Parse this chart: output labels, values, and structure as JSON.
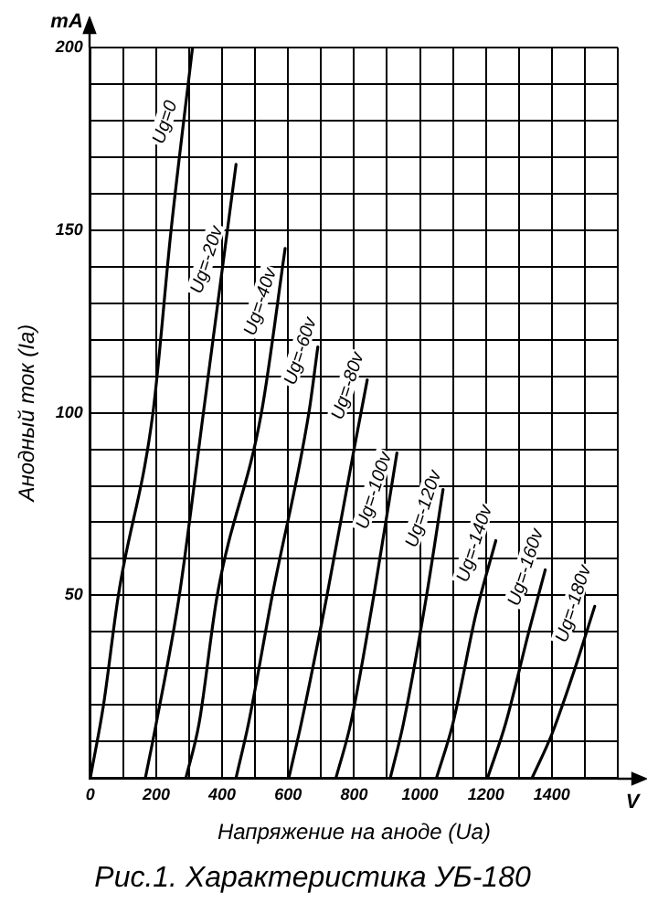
{
  "chart_data": {
    "type": "line",
    "title": "Рис.1. Характеристика УБ-180",
    "xlabel": "Напряжение на аноде (Uа)",
    "ylabel": "Анодный ток (Iа)",
    "annotations": [
      "mA",
      "V"
    ],
    "xlim": [
      0,
      1600
    ],
    "ylim": [
      0,
      200
    ],
    "xticks": [
      0,
      {
        "value": 100,
        "label": null
      },
      200,
      {
        "value": 300,
        "label": null
      },
      400,
      {
        "value": 500,
        "label": null
      },
      600,
      {
        "value": 700,
        "label": null
      },
      800,
      {
        "value": 900,
        "label": null
      },
      1000,
      {
        "value": 1100,
        "label": null
      },
      1200,
      {
        "value": 1300,
        "label": null
      },
      1400,
      {
        "value": 1500,
        "label": null
      },
      {
        "value": 1600,
        "label": null
      }
    ],
    "yticks": [
      {
        "value": 0,
        "label": null
      },
      {
        "value": 10,
        "label": null
      },
      {
        "value": 20,
        "label": null
      },
      {
        "value": 30,
        "label": null
      },
      {
        "value": 40,
        "label": null
      },
      50,
      {
        "value": 60,
        "label": null
      },
      {
        "value": 70,
        "label": null
      },
      {
        "value": 80,
        "label": null
      },
      {
        "value": 90,
        "label": null
      },
      100,
      {
        "value": 110,
        "label": null
      },
      {
        "value": 120,
        "label": null
      },
      {
        "value": 130,
        "label": null
      },
      {
        "value": 140,
        "label": null
      },
      150,
      {
        "value": 160,
        "label": null
      },
      {
        "value": 170,
        "label": null
      },
      {
        "value": 180,
        "label": null
      },
      {
        "value": 190,
        "label": null
      },
      200
    ],
    "grid": true,
    "marker": "none",
    "line_style": "solid",
    "series": [
      {
        "name": "Ug=0",
        "color": "#000000",
        "x": [
          0,
          40,
          85,
          190,
          245,
          310
        ],
        "values": [
          0,
          20,
          50,
          100,
          150,
          200
        ]
      },
      {
        "name": "Ug=-20v",
        "color": "#000000",
        "x": [
          167,
          200,
          270,
          343,
          442
        ],
        "values": [
          0,
          15,
          50,
          100,
          168
        ]
      },
      {
        "name": "Ug=-40v",
        "color": "#000000",
        "x": [
          290,
          330,
          385,
          519,
          591
        ],
        "values": [
          0,
          15,
          50,
          100,
          145
        ]
      },
      {
        "name": "Ug=-60v",
        "color": "#000000",
        "x": [
          442,
          480,
          552,
          663,
          690
        ],
        "values": [
          0,
          15,
          50,
          100,
          118
        ]
      },
      {
        "name": "Ug=-80v",
        "color": "#000000",
        "x": [
          602,
          640,
          718,
          800,
          840
        ],
        "values": [
          0,
          15,
          50,
          90,
          109
        ]
      },
      {
        "name": "Ug=-100v",
        "color": "#000000",
        "x": [
          745,
          790,
          860,
          930
        ],
        "values": [
          0,
          15,
          50,
          89
        ]
      },
      {
        "name": "Ug=-120v",
        "color": "#000000",
        "x": [
          910,
          950,
          1020,
          1070
        ],
        "values": [
          0,
          15,
          50,
          79
        ]
      },
      {
        "name": "Ug=-140v",
        "color": "#000000",
        "x": [
          1050,
          1100,
          1170,
          1230
        ],
        "values": [
          0,
          15,
          45,
          65
        ]
      },
      {
        "name": "Ug=-160v",
        "color": "#000000",
        "x": [
          1205,
          1260,
          1330,
          1380
        ],
        "values": [
          0,
          15,
          40,
          57
        ]
      },
      {
        "name": "Ug=-180v",
        "color": "#000000",
        "x": [
          1340,
          1400,
          1470,
          1530
        ],
        "values": [
          0,
          12,
          30,
          47
        ]
      }
    ]
  }
}
